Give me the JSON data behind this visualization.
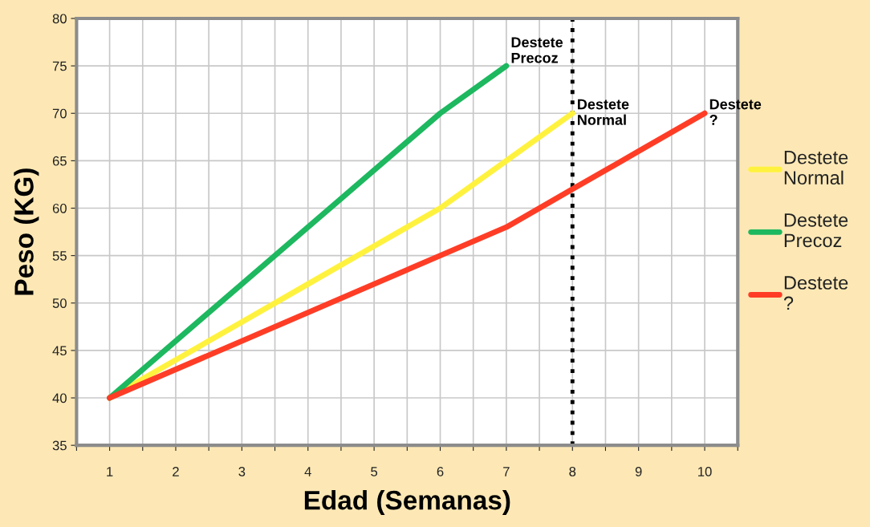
{
  "chart_data": {
    "type": "line",
    "xlabel": "Edad (Semanas)",
    "ylabel": "Peso (KG)",
    "x": [
      1,
      2,
      3,
      4,
      5,
      6,
      7,
      8,
      9,
      10
    ],
    "series": [
      {
        "name": "Destete\nNormal",
        "color": "#fff23f",
        "values": [
          40,
          44,
          48,
          52,
          56,
          60,
          65,
          70,
          null,
          null
        ]
      },
      {
        "name": "Destete\nPrecoz",
        "color": "#1db85f",
        "values": [
          40,
          46,
          52,
          58,
          64,
          70,
          75,
          null,
          null,
          null
        ]
      },
      {
        "name": "Destete\n?",
        "color": "#ff3d26",
        "values": [
          40,
          43,
          46,
          49,
          52,
          55,
          58,
          62,
          66,
          70
        ]
      }
    ],
    "xlim": [
      0.5,
      10.5
    ],
    "xticks": [
      {
        "value": 0.5,
        "label": null
      },
      1,
      {
        "value": 1.5,
        "label": null
      },
      2,
      {
        "value": 2.5,
        "label": null
      },
      3,
      {
        "value": 3.5,
        "label": null
      },
      4,
      {
        "value": 4.5,
        "label": null
      },
      5,
      {
        "value": 5.5,
        "label": null
      },
      6,
      {
        "value": 6.5,
        "label": null
      },
      7,
      {
        "value": 7.5,
        "label": null
      },
      8,
      {
        "value": 8.5,
        "label": null
      },
      9,
      {
        "value": 9.5,
        "label": null
      },
      10,
      {
        "value": 10.5,
        "label": null
      }
    ],
    "ylim": [
      35,
      80
    ],
    "yticks": [
      35,
      40,
      45,
      50,
      55,
      60,
      65,
      70,
      75,
      80
    ],
    "grid": true,
    "legend": "right",
    "marker": "none",
    "line_style": "solid",
    "ref_lines": [
      {
        "axis": "x",
        "value": 8,
        "color": "#000000",
        "line_style": "dotted"
      }
    ],
    "annotations": [
      {
        "text": "Destete\nPrecoz",
        "x": 7,
        "y": 75
      },
      {
        "text": "Destete\nNormal",
        "x": 8,
        "y": 70
      },
      {
        "text": "Destete\n?",
        "x": 10,
        "y": 70
      }
    ]
  }
}
